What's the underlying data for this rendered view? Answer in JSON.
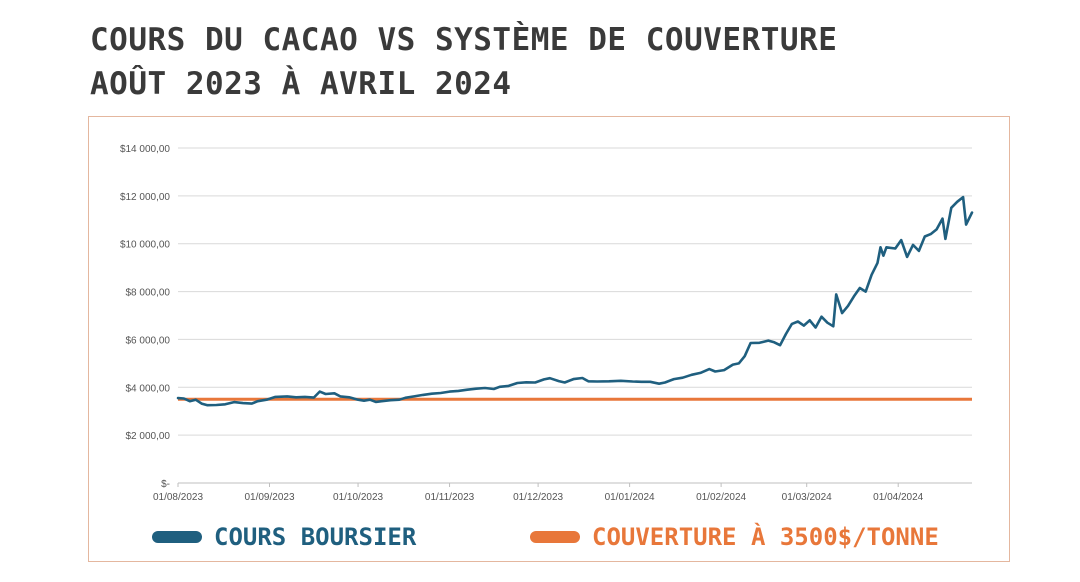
{
  "title": {
    "line1": "COURS DU CACAO VS SYSTÈME DE COUVERTURE",
    "line2": "AOÛT 2023 À AVRIL 2024"
  },
  "colors": {
    "price": "#1f5f7f",
    "hedge": "#e8773a",
    "grid": "#d9d9d9",
    "axis_text": "#555555",
    "frame": "#e4b79f"
  },
  "legend": {
    "price_label": "COURS BOURSIER",
    "hedge_label": "COUVERTURE À 3500$/TONNE"
  },
  "chart_data": {
    "type": "line",
    "ylim": [
      0,
      14000
    ],
    "y_ticks": [
      0,
      2000,
      4000,
      6000,
      8000,
      10000,
      12000,
      14000
    ],
    "y_tick_labels": [
      "$-",
      "$2 000,00",
      "$4 000,00",
      "$6 000,00",
      "$8 000,00",
      "$10 000,00",
      "$12 000,00",
      "$14 000,00"
    ],
    "x_range": [
      "2023-08-01",
      "2024-04-26"
    ],
    "x_ticks": [
      "2023-08-01",
      "2023-09-01",
      "2023-10-01",
      "2023-11-01",
      "2023-12-01",
      "2024-01-01",
      "2024-02-01",
      "2024-03-01",
      "2024-04-01"
    ],
    "x_tick_labels": [
      "01/08/2023",
      "01/09/2023",
      "01/10/2023",
      "01/11/2023",
      "01/12/2023",
      "01/01/2024",
      "01/02/2024",
      "01/03/2024",
      "01/04/2024"
    ],
    "grid": true,
    "legend_position": "bottom",
    "series": [
      {
        "name": "COURS BOURSIER",
        "points": [
          [
            "2023-08-01",
            3550
          ],
          [
            "2023-08-03",
            3530
          ],
          [
            "2023-08-05",
            3420
          ],
          [
            "2023-08-07",
            3480
          ],
          [
            "2023-08-09",
            3320
          ],
          [
            "2023-08-11",
            3250
          ],
          [
            "2023-08-14",
            3260
          ],
          [
            "2023-08-17",
            3290
          ],
          [
            "2023-08-20",
            3380
          ],
          [
            "2023-08-23",
            3340
          ],
          [
            "2023-08-26",
            3320
          ],
          [
            "2023-08-28",
            3420
          ],
          [
            "2023-08-31",
            3480
          ],
          [
            "2023-09-03",
            3600
          ],
          [
            "2023-09-07",
            3620
          ],
          [
            "2023-09-10",
            3580
          ],
          [
            "2023-09-13",
            3600
          ],
          [
            "2023-09-16",
            3570
          ],
          [
            "2023-09-18",
            3820
          ],
          [
            "2023-09-20",
            3720
          ],
          [
            "2023-09-23",
            3750
          ],
          [
            "2023-09-25",
            3620
          ],
          [
            "2023-09-28",
            3580
          ],
          [
            "2023-10-01",
            3480
          ],
          [
            "2023-10-03",
            3440
          ],
          [
            "2023-10-05",
            3480
          ],
          [
            "2023-10-07",
            3390
          ],
          [
            "2023-10-09",
            3420
          ],
          [
            "2023-10-12",
            3460
          ],
          [
            "2023-10-15",
            3480
          ],
          [
            "2023-10-17",
            3560
          ],
          [
            "2023-10-20",
            3620
          ],
          [
            "2023-10-23",
            3680
          ],
          [
            "2023-10-26",
            3730
          ],
          [
            "2023-10-29",
            3760
          ],
          [
            "2023-11-01",
            3820
          ],
          [
            "2023-11-04",
            3850
          ],
          [
            "2023-11-07",
            3900
          ],
          [
            "2023-11-10",
            3940
          ],
          [
            "2023-11-13",
            3970
          ],
          [
            "2023-11-16",
            3930
          ],
          [
            "2023-11-18",
            4020
          ],
          [
            "2023-11-21",
            4060
          ],
          [
            "2023-11-24",
            4180
          ],
          [
            "2023-11-27",
            4210
          ],
          [
            "2023-11-30",
            4200
          ],
          [
            "2023-12-03",
            4330
          ],
          [
            "2023-12-05",
            4380
          ],
          [
            "2023-12-08",
            4260
          ],
          [
            "2023-12-10",
            4200
          ],
          [
            "2023-12-13",
            4340
          ],
          [
            "2023-12-16",
            4390
          ],
          [
            "2023-12-18",
            4250
          ],
          [
            "2023-12-21",
            4240
          ],
          [
            "2023-12-25",
            4250
          ],
          [
            "2023-12-29",
            4270
          ],
          [
            "2024-01-02",
            4240
          ],
          [
            "2024-01-05",
            4230
          ],
          [
            "2024-01-08",
            4230
          ],
          [
            "2024-01-11",
            4150
          ],
          [
            "2024-01-13",
            4200
          ],
          [
            "2024-01-16",
            4340
          ],
          [
            "2024-01-19",
            4400
          ],
          [
            "2024-01-22",
            4520
          ],
          [
            "2024-01-25",
            4600
          ],
          [
            "2024-01-28",
            4760
          ],
          [
            "2024-01-30",
            4660
          ],
          [
            "2024-02-02",
            4720
          ],
          [
            "2024-02-05",
            4950
          ],
          [
            "2024-02-07",
            5000
          ],
          [
            "2024-02-09",
            5300
          ],
          [
            "2024-02-11",
            5850
          ],
          [
            "2024-02-14",
            5860
          ],
          [
            "2024-02-17",
            5950
          ],
          [
            "2024-02-19",
            5880
          ],
          [
            "2024-02-21",
            5760
          ],
          [
            "2024-02-23",
            6230
          ],
          [
            "2024-02-25",
            6650
          ],
          [
            "2024-02-27",
            6750
          ],
          [
            "2024-02-29",
            6580
          ],
          [
            "2024-03-02",
            6800
          ],
          [
            "2024-03-04",
            6500
          ],
          [
            "2024-03-06",
            6950
          ],
          [
            "2024-03-08",
            6700
          ],
          [
            "2024-03-10",
            6550
          ],
          [
            "2024-03-11",
            7880
          ],
          [
            "2024-03-13",
            7100
          ],
          [
            "2024-03-15",
            7400
          ],
          [
            "2024-03-17",
            7800
          ],
          [
            "2024-03-19",
            8150
          ],
          [
            "2024-03-21",
            8000
          ],
          [
            "2024-03-23",
            8700
          ],
          [
            "2024-03-25",
            9200
          ],
          [
            "2024-03-26",
            9850
          ],
          [
            "2024-03-27",
            9500
          ],
          [
            "2024-03-28",
            9850
          ],
          [
            "2024-03-31",
            9800
          ],
          [
            "2024-04-02",
            10150
          ],
          [
            "2024-04-04",
            9450
          ],
          [
            "2024-04-06",
            9950
          ],
          [
            "2024-04-08",
            9700
          ],
          [
            "2024-04-10",
            10300
          ],
          [
            "2024-04-12",
            10400
          ],
          [
            "2024-04-14",
            10600
          ],
          [
            "2024-04-16",
            11050
          ],
          [
            "2024-04-17",
            10200
          ],
          [
            "2024-04-19",
            11500
          ],
          [
            "2024-04-21",
            11750
          ],
          [
            "2024-04-23",
            11950
          ],
          [
            "2024-04-24",
            10800
          ],
          [
            "2024-04-26",
            11300
          ]
        ]
      },
      {
        "name": "COUVERTURE À 3500$/TONNE",
        "points": [
          [
            "2023-08-01",
            3500
          ],
          [
            "2024-04-26",
            3500
          ]
        ]
      }
    ]
  }
}
